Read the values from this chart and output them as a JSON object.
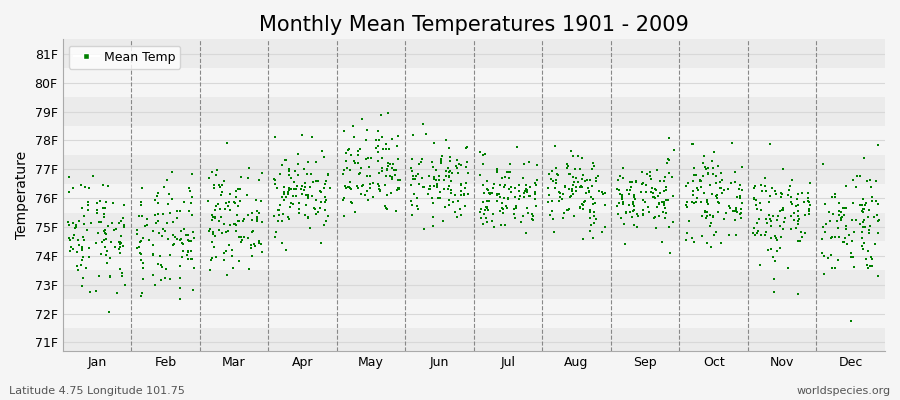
{
  "title": "Monthly Mean Temperatures 1901 - 2009",
  "ylabel": "Temperature",
  "xlabel_labels": [
    "Jan",
    "Feb",
    "Mar",
    "Apr",
    "May",
    "Jun",
    "Jul",
    "Aug",
    "Sep",
    "Oct",
    "Nov",
    "Dec"
  ],
  "ytick_labels": [
    "71F",
    "72F",
    "73F",
    "74F",
    "75F",
    "76F",
    "77F",
    "78F",
    "79F",
    "80F",
    "81F"
  ],
  "ytick_values": [
    71,
    72,
    73,
    74,
    75,
    76,
    77,
    78,
    79,
    80,
    81
  ],
  "ylim": [
    70.7,
    81.5
  ],
  "legend_label": "Mean Temp",
  "marker_color": "#008000",
  "marker_size": 2.5,
  "background_color": "#f5f5f5",
  "band_colors": [
    "#ebebeb",
    "#f5f5f5"
  ],
  "grid_line_color": "#d8d8d8",
  "dashed_line_color": "#888888",
  "footnote_left": "Latitude 4.75 Longitude 101.75",
  "footnote_right": "worldspecies.org",
  "title_fontsize": 15,
  "label_fontsize": 10,
  "tick_fontsize": 9,
  "years": 109,
  "months": 12,
  "monthly_means": [
    74.8,
    74.5,
    75.3,
    76.2,
    76.8,
    76.5,
    76.1,
    76.2,
    76.0,
    76.0,
    75.4,
    75.2
  ],
  "monthly_stds": [
    1.05,
    1.0,
    0.85,
    0.75,
    0.85,
    0.7,
    0.65,
    0.7,
    0.65,
    0.7,
    0.9,
    1.0
  ],
  "seed": 42
}
